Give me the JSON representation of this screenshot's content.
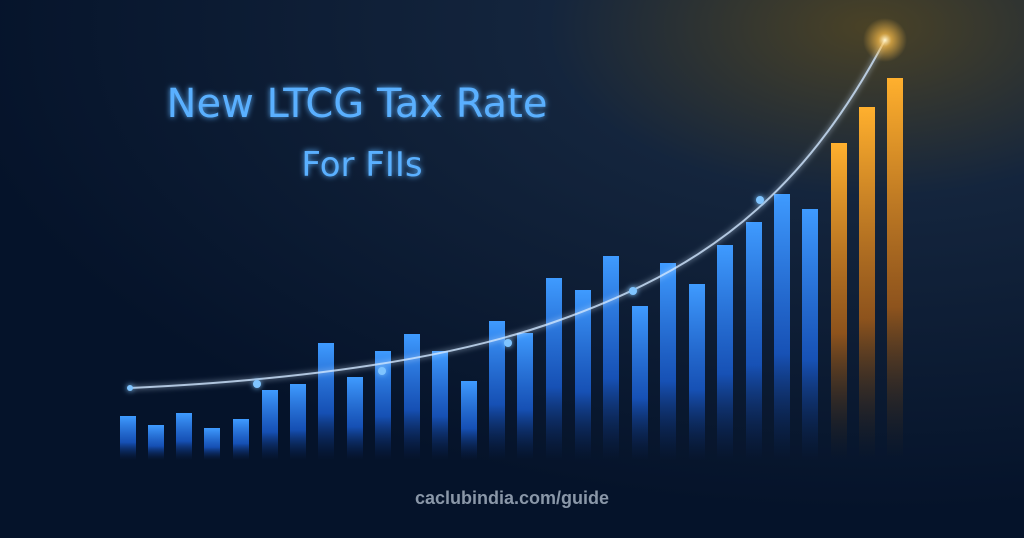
{
  "header": {
    "title": "New LTCG Tax Rate",
    "subtitle": "For FIIs"
  },
  "footer": {
    "source": "caclubindia.com/guide"
  }
}
